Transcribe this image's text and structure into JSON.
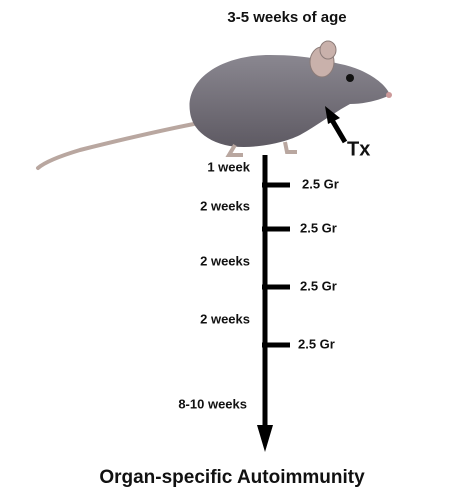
{
  "title": "3-5 weeks of age",
  "treatment": "Tx",
  "intervals": [
    "1 week",
    "2 weeks",
    "2 weeks",
    "2 weeks",
    "8-10 weeks"
  ],
  "doses": [
    "2.5 Gr",
    "2.5 Gr",
    "2.5 Gr",
    "2.5 Gr"
  ],
  "outcome": "Organ-specific Autoimmunity"
}
